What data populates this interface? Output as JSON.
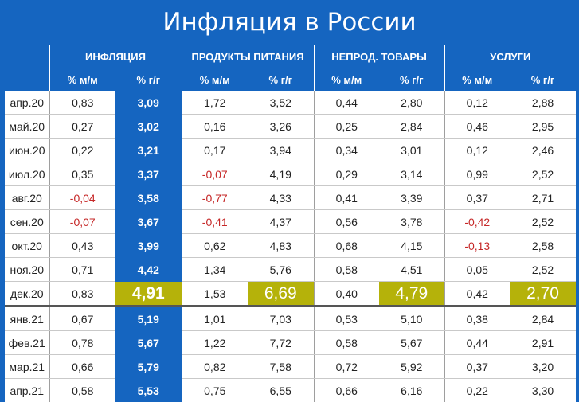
{
  "title": "Инфляция в России",
  "groups": [
    "ИНФЛЯЦИЯ",
    "ПРОДУКТЫ ПИТАНИЯ",
    "НЕПРОД. ТОВАРЫ",
    "УСЛУГИ"
  ],
  "subheaders": [
    "% м/м",
    "% г/г",
    "% м/м",
    "% г/г",
    "% м/м",
    "% г/г",
    "% м/м",
    "% г/г"
  ],
  "rows": [
    {
      "month": "апр.20",
      "v": [
        "0,83",
        "3,09",
        "1,72",
        "3,52",
        "0,44",
        "2,80",
        "0,12",
        "2,88"
      ]
    },
    {
      "month": "май.20",
      "v": [
        "0,27",
        "3,02",
        "0,16",
        "3,26",
        "0,25",
        "2,84",
        "0,46",
        "2,95"
      ]
    },
    {
      "month": "июн.20",
      "v": [
        "0,22",
        "3,21",
        "0,17",
        "3,94",
        "0,34",
        "3,01",
        "0,12",
        "2,46"
      ]
    },
    {
      "month": "июл.20",
      "v": [
        "0,35",
        "3,37",
        "-0,07",
        "4,19",
        "0,29",
        "3,14",
        "0,99",
        "2,52"
      ]
    },
    {
      "month": "авг.20",
      "v": [
        "-0,04",
        "3,58",
        "-0,77",
        "4,33",
        "0,41",
        "3,39",
        "0,37",
        "2,71"
      ]
    },
    {
      "month": "сен.20",
      "v": [
        "-0,07",
        "3,67",
        "-0,41",
        "4,37",
        "0,56",
        "3,78",
        "-0,42",
        "2,52"
      ]
    },
    {
      "month": "окт.20",
      "v": [
        "0,43",
        "3,99",
        "0,62",
        "4,83",
        "0,68",
        "4,15",
        "-0,13",
        "2,58"
      ]
    },
    {
      "month": "ноя.20",
      "v": [
        "0,71",
        "4,42",
        "1,34",
        "5,76",
        "0,58",
        "4,51",
        "0,05",
        "2,52"
      ]
    },
    {
      "month": "дек.20",
      "v": [
        "0,83",
        "4,91",
        "1,53",
        "6,69",
        "0,40",
        "4,79",
        "0,42",
        "2,70"
      ]
    },
    {
      "month": "янв.21",
      "v": [
        "0,67",
        "5,19",
        "1,01",
        "7,03",
        "0,53",
        "5,10",
        "0,38",
        "2,84"
      ]
    },
    {
      "month": "фев.21",
      "v": [
        "0,78",
        "5,67",
        "1,22",
        "7,72",
        "0,58",
        "5,67",
        "0,44",
        "2,91"
      ]
    },
    {
      "month": "мар.21",
      "v": [
        "0,66",
        "5,79",
        "0,82",
        "7,58",
        "0,72",
        "5,92",
        "0,37",
        "3,20"
      ]
    },
    {
      "month": "апр.21",
      "v": [
        "0,58",
        "5,53",
        "0,75",
        "6,55",
        "0,66",
        "6,16",
        "0,22",
        "3,30"
      ]
    }
  ],
  "colors": {
    "header_blue": "#1565c0",
    "highlight": "#b5b20a",
    "negative": "#c62828"
  },
  "highlight_row": "дек.20"
}
